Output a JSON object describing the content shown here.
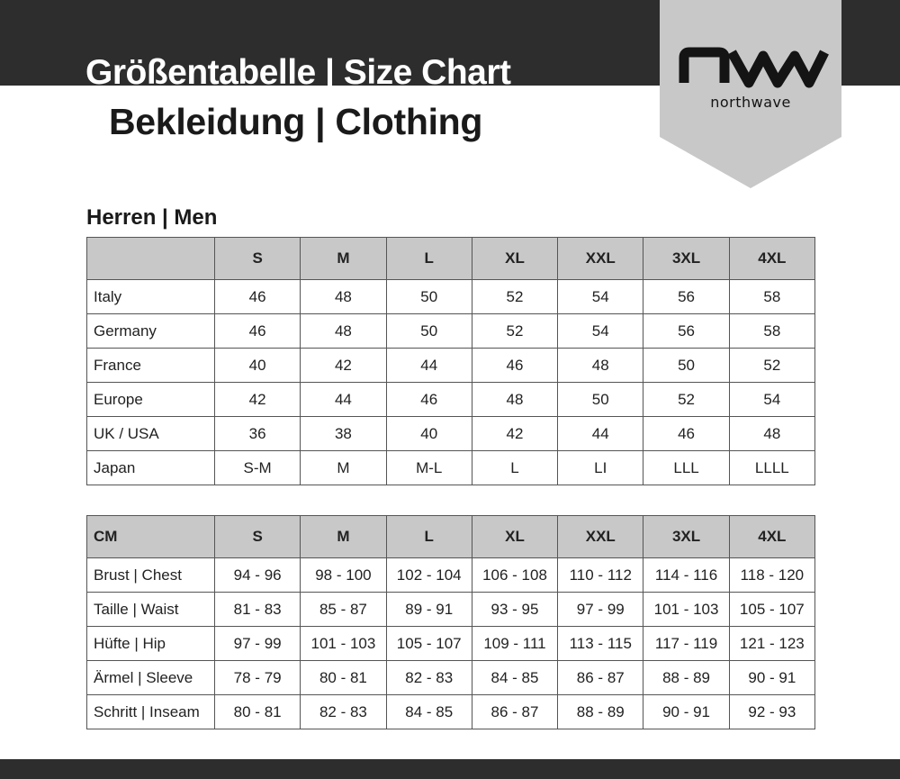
{
  "header": {
    "title": "Größentabelle | Size Chart",
    "subtitle": "Bekleidung | Clothing",
    "logo_text": "northwave",
    "logo_mark": "nw"
  },
  "section_title": "Herren | Men",
  "sizes": [
    "S",
    "M",
    "L",
    "XL",
    "XXL",
    "3XL",
    "4XL"
  ],
  "conversion_table": {
    "corner": "",
    "rows": [
      {
        "label": "Italy",
        "values": [
          "46",
          "48",
          "50",
          "52",
          "54",
          "56",
          "58"
        ]
      },
      {
        "label": "Germany",
        "values": [
          "46",
          "48",
          "50",
          "52",
          "54",
          "56",
          "58"
        ]
      },
      {
        "label": "France",
        "values": [
          "40",
          "42",
          "44",
          "46",
          "48",
          "50",
          "52"
        ]
      },
      {
        "label": "Europe",
        "values": [
          "42",
          "44",
          "46",
          "48",
          "50",
          "52",
          "54"
        ]
      },
      {
        "label": "UK / USA",
        "values": [
          "36",
          "38",
          "40",
          "42",
          "44",
          "46",
          "48"
        ]
      },
      {
        "label": "Japan",
        "values": [
          "S-M",
          "M",
          "M-L",
          "L",
          "LI",
          "LLL",
          "LLLL"
        ]
      }
    ]
  },
  "cm_table": {
    "corner": "CM",
    "rows": [
      {
        "label": "Brust | Chest",
        "values": [
          "94 - 96",
          "98 - 100",
          "102 - 104",
          "106 - 108",
          "110 - 112",
          "114 - 116",
          "118 - 120"
        ]
      },
      {
        "label": "Taille | Waist",
        "values": [
          "81 - 83",
          "85 - 87",
          "89 - 91",
          "93 - 95",
          "97 - 99",
          "101 - 103",
          "105 - 107"
        ]
      },
      {
        "label": "Hüfte | Hip",
        "values": [
          "97 - 99",
          "101 - 103",
          "105 - 107",
          "109 - 111",
          "113 - 115",
          "117 - 119",
          "121 - 123"
        ]
      },
      {
        "label": "Ärmel | Sleeve",
        "values": [
          "78 - 79",
          "80 - 81",
          "82 - 83",
          "84 - 85",
          "86 - 87",
          "88 - 89",
          "90 - 91"
        ]
      },
      {
        "label": "Schritt | Inseam",
        "values": [
          "80 - 81",
          "82 - 83",
          "84 - 85",
          "86 - 87",
          "88 - 89",
          "90 - 91",
          "92 - 93"
        ]
      }
    ]
  },
  "colors": {
    "dark_band": "#2d2d2d",
    "header_fill": "#c8c8c8",
    "logo_banner": "#c8c8c8"
  }
}
